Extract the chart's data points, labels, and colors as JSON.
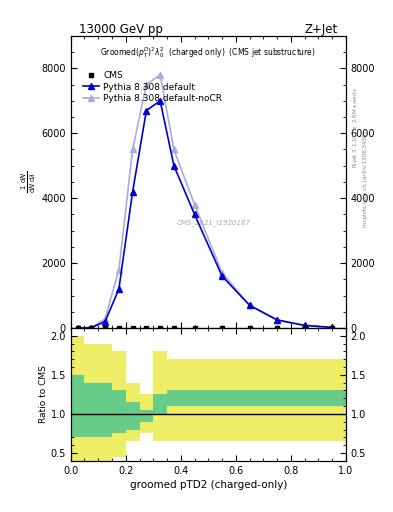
{
  "title_left": "13000 GeV pp",
  "title_right": "Z+Jet",
  "plot_title": "Groomed$(p_T^D)^2\\lambda_0^2$  (charged only)  (CMS jet substructure)",
  "ylabel_main": "$\\frac{1}{\\mathrm{d}N}\\frac{\\mathrm{d}N}{\\mathrm{d}\\lambda}$",
  "ylabel_ratio": "Ratio to CMS",
  "xlabel": "groomed pTD2 (charged-only)",
  "right_label_top": "Rivet 3.1.10, $\\geq$ 2.6M events",
  "right_label_bottom": "mcplots.cern.ch [arXiv:1306.3436]",
  "watermark": "CMS_2021_I1920187",
  "cms_label": "CMS",
  "pythia_default_label": "Pythia 8.308 default",
  "pythia_nocr_label": "Pythia 8.308 default-noCR",
  "bin_edges": [
    0.0,
    0.05,
    0.1,
    0.15,
    0.2,
    0.25,
    0.3,
    0.35,
    0.4,
    0.5,
    0.6,
    0.7,
    0.8,
    0.9,
    1.0
  ],
  "cms_values": [
    0,
    0,
    0,
    0,
    0,
    0,
    0,
    0,
    0,
    0,
    0,
    0,
    0,
    0
  ],
  "pythia_default": [
    0,
    10,
    200,
    1200,
    4200,
    6700,
    7000,
    5000,
    3500,
    1600,
    700,
    250,
    80,
    20
  ],
  "pythia_nocr": [
    0,
    15,
    280,
    1800,
    5500,
    7500,
    7800,
    5500,
    3800,
    1700,
    700,
    240,
    75,
    18
  ],
  "ratio_green_low": [
    0.7,
    0.7,
    0.7,
    0.75,
    0.8,
    0.9,
    1.0,
    1.1,
    1.1,
    1.1,
    1.1,
    1.1,
    1.1,
    1.1
  ],
  "ratio_green_high": [
    1.5,
    1.4,
    1.4,
    1.3,
    1.15,
    1.05,
    1.25,
    1.3,
    1.3,
    1.3,
    1.3,
    1.3,
    1.3,
    1.3
  ],
  "ratio_yellow_low": [
    0.0,
    0.3,
    0.35,
    0.45,
    0.65,
    0.75,
    0.65,
    0.65,
    0.65,
    0.65,
    0.65,
    0.65,
    0.65,
    0.65
  ],
  "ratio_yellow_high": [
    2.0,
    1.9,
    1.9,
    1.8,
    1.4,
    1.25,
    1.8,
    1.7,
    1.7,
    1.7,
    1.7,
    1.7,
    1.7,
    1.7
  ],
  "color_pythia_default": "#0000cc",
  "color_pythia_nocr": "#aaaadd",
  "color_cms": "black",
  "color_green": "#66cc88",
  "color_yellow": "#eeee66",
  "ylim_main": [
    0,
    9000
  ],
  "ylim_ratio": [
    0.4,
    2.1
  ],
  "ratio_yticks": [
    0.5,
    1.0,
    1.5,
    2.0
  ],
  "main_yticks": [
    0,
    2000,
    4000,
    6000,
    8000
  ]
}
